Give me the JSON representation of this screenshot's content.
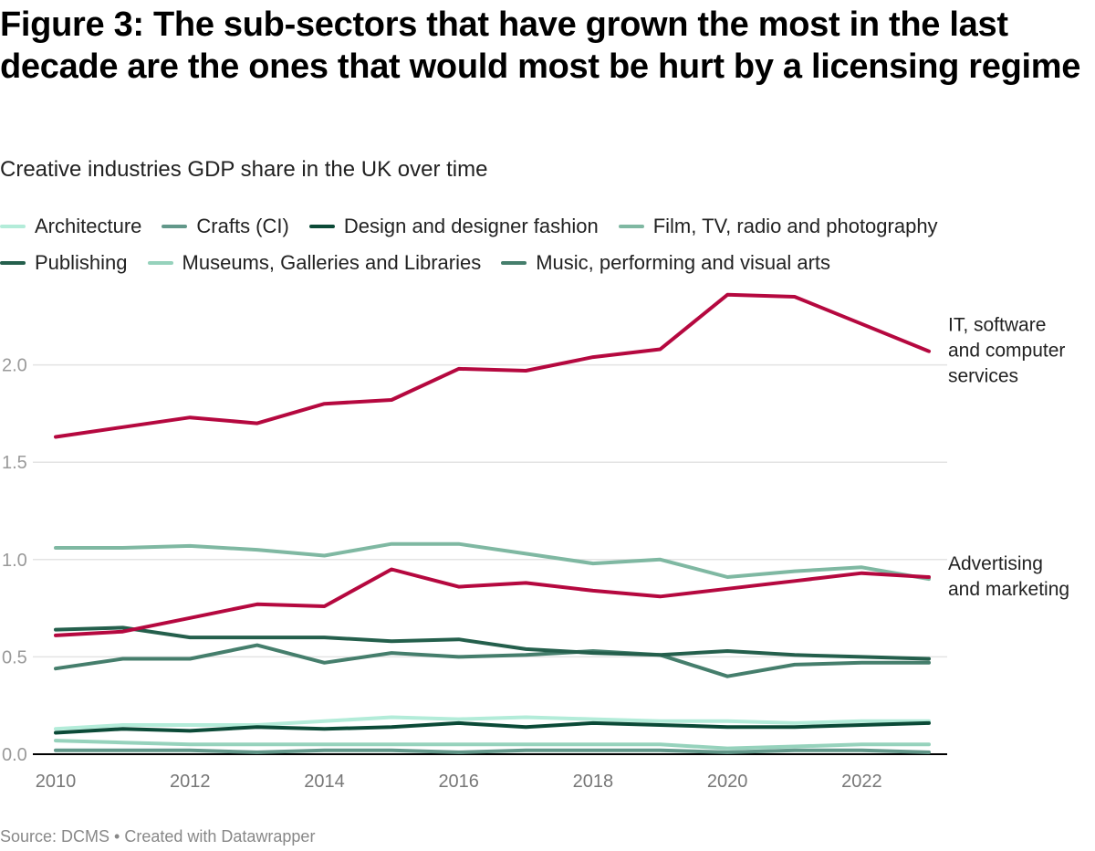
{
  "title": "Figure 3: The sub-sectors that have grown the most in the last decade are the ones that would most be hurt by a licensing regime",
  "subtitle": "Creative industries GDP share in the UK over time",
  "footer": "Source: DCMS • Created with Datawrapper",
  "legend": {
    "rows": [
      [
        {
          "label": "Architecture",
          "color": "#b3ecd9"
        },
        {
          "label": "Crafts (CI)",
          "color": "#62988a"
        },
        {
          "label": "Design and designer fashion",
          "color": "#0b4a37"
        },
        {
          "label": "Film, TV, radio and photography",
          "color": "#7fb8a2"
        }
      ],
      [
        {
          "label": "Publishing",
          "color": "#245f4c"
        },
        {
          "label": "Museums, Galleries and Libraries",
          "color": "#96d2bc"
        },
        {
          "label": "Music, performing and visual arts",
          "color": "#457e6c"
        }
      ]
    ]
  },
  "chart_data": {
    "type": "line",
    "title": "Figure 3: The sub-sectors that have grown the most in the last decade are the ones that would most be hurt by a licensing regime",
    "subtitle": "Creative industries GDP share in the UK over time",
    "xlabel": "",
    "ylabel": "",
    "x": [
      2010,
      2011,
      2012,
      2013,
      2014,
      2015,
      2016,
      2017,
      2018,
      2019,
      2020,
      2021,
      2022,
      2023
    ],
    "x_ticks": [
      "2010",
      "2012",
      "2014",
      "2016",
      "2018",
      "2020",
      "2022"
    ],
    "x_tick_values": [
      2010,
      2012,
      2014,
      2016,
      2018,
      2020,
      2022
    ],
    "y_ticks": [
      "0.0",
      "0.5",
      "1.0",
      "1.5",
      "2.0"
    ],
    "y_tick_values": [
      0,
      0.5,
      1.0,
      1.5,
      2.0
    ],
    "ylim": [
      0,
      2.4
    ],
    "xlim": [
      2010,
      2023
    ],
    "grid": true,
    "legend_position": "top",
    "series": [
      {
        "name": "Crafts (CI)",
        "color": "#62988a",
        "values": [
          0.02,
          0.02,
          0.02,
          0.01,
          0.02,
          0.02,
          0.01,
          0.02,
          0.02,
          0.02,
          0.01,
          0.02,
          0.02,
          0.01
        ]
      },
      {
        "name": "Museums, Galleries and Libraries",
        "color": "#96d2bc",
        "values": [
          0.07,
          0.06,
          0.05,
          0.05,
          0.05,
          0.05,
          0.05,
          0.05,
          0.05,
          0.05,
          0.03,
          0.04,
          0.05,
          0.05
        ]
      },
      {
        "name": "Architecture",
        "color": "#b3ecd9",
        "values": [
          0.13,
          0.15,
          0.15,
          0.15,
          0.17,
          0.19,
          0.18,
          0.19,
          0.18,
          0.17,
          0.17,
          0.16,
          0.17,
          0.17
        ]
      },
      {
        "name": "Design and designer fashion",
        "color": "#0b4a37",
        "values": [
          0.11,
          0.13,
          0.12,
          0.14,
          0.13,
          0.14,
          0.16,
          0.14,
          0.16,
          0.15,
          0.14,
          0.14,
          0.15,
          0.16
        ]
      },
      {
        "name": "Music, performing and visual arts",
        "color": "#457e6c",
        "values": [
          0.44,
          0.49,
          0.49,
          0.56,
          0.47,
          0.52,
          0.5,
          0.51,
          0.53,
          0.51,
          0.4,
          0.46,
          0.47,
          0.47
        ]
      },
      {
        "name": "Publishing",
        "color": "#245f4c",
        "values": [
          0.64,
          0.65,
          0.6,
          0.6,
          0.6,
          0.58,
          0.59,
          0.54,
          0.52,
          0.51,
          0.53,
          0.51,
          0.5,
          0.49
        ]
      },
      {
        "name": "Film, TV, radio and photography",
        "color": "#7fb8a2",
        "values": [
          1.06,
          1.06,
          1.07,
          1.05,
          1.02,
          1.08,
          1.08,
          1.03,
          0.98,
          1.0,
          0.91,
          0.94,
          0.96,
          0.9
        ]
      },
      {
        "name": "Advertising and marketing",
        "color": "#b5083f",
        "values": [
          0.61,
          0.63,
          0.7,
          0.77,
          0.76,
          0.95,
          0.86,
          0.88,
          0.84,
          0.81,
          0.85,
          0.89,
          0.93,
          0.91
        ],
        "label_lines": [
          "Advertising",
          "and marketing"
        ]
      },
      {
        "name": "IT, software and computer services",
        "color": "#b5083f",
        "values": [
          1.63,
          1.68,
          1.73,
          1.7,
          1.8,
          1.82,
          1.98,
          1.97,
          2.04,
          2.08,
          2.36,
          2.35,
          2.21,
          2.07
        ],
        "label_lines": [
          "IT, software",
          "and computer",
          "services"
        ]
      }
    ]
  }
}
